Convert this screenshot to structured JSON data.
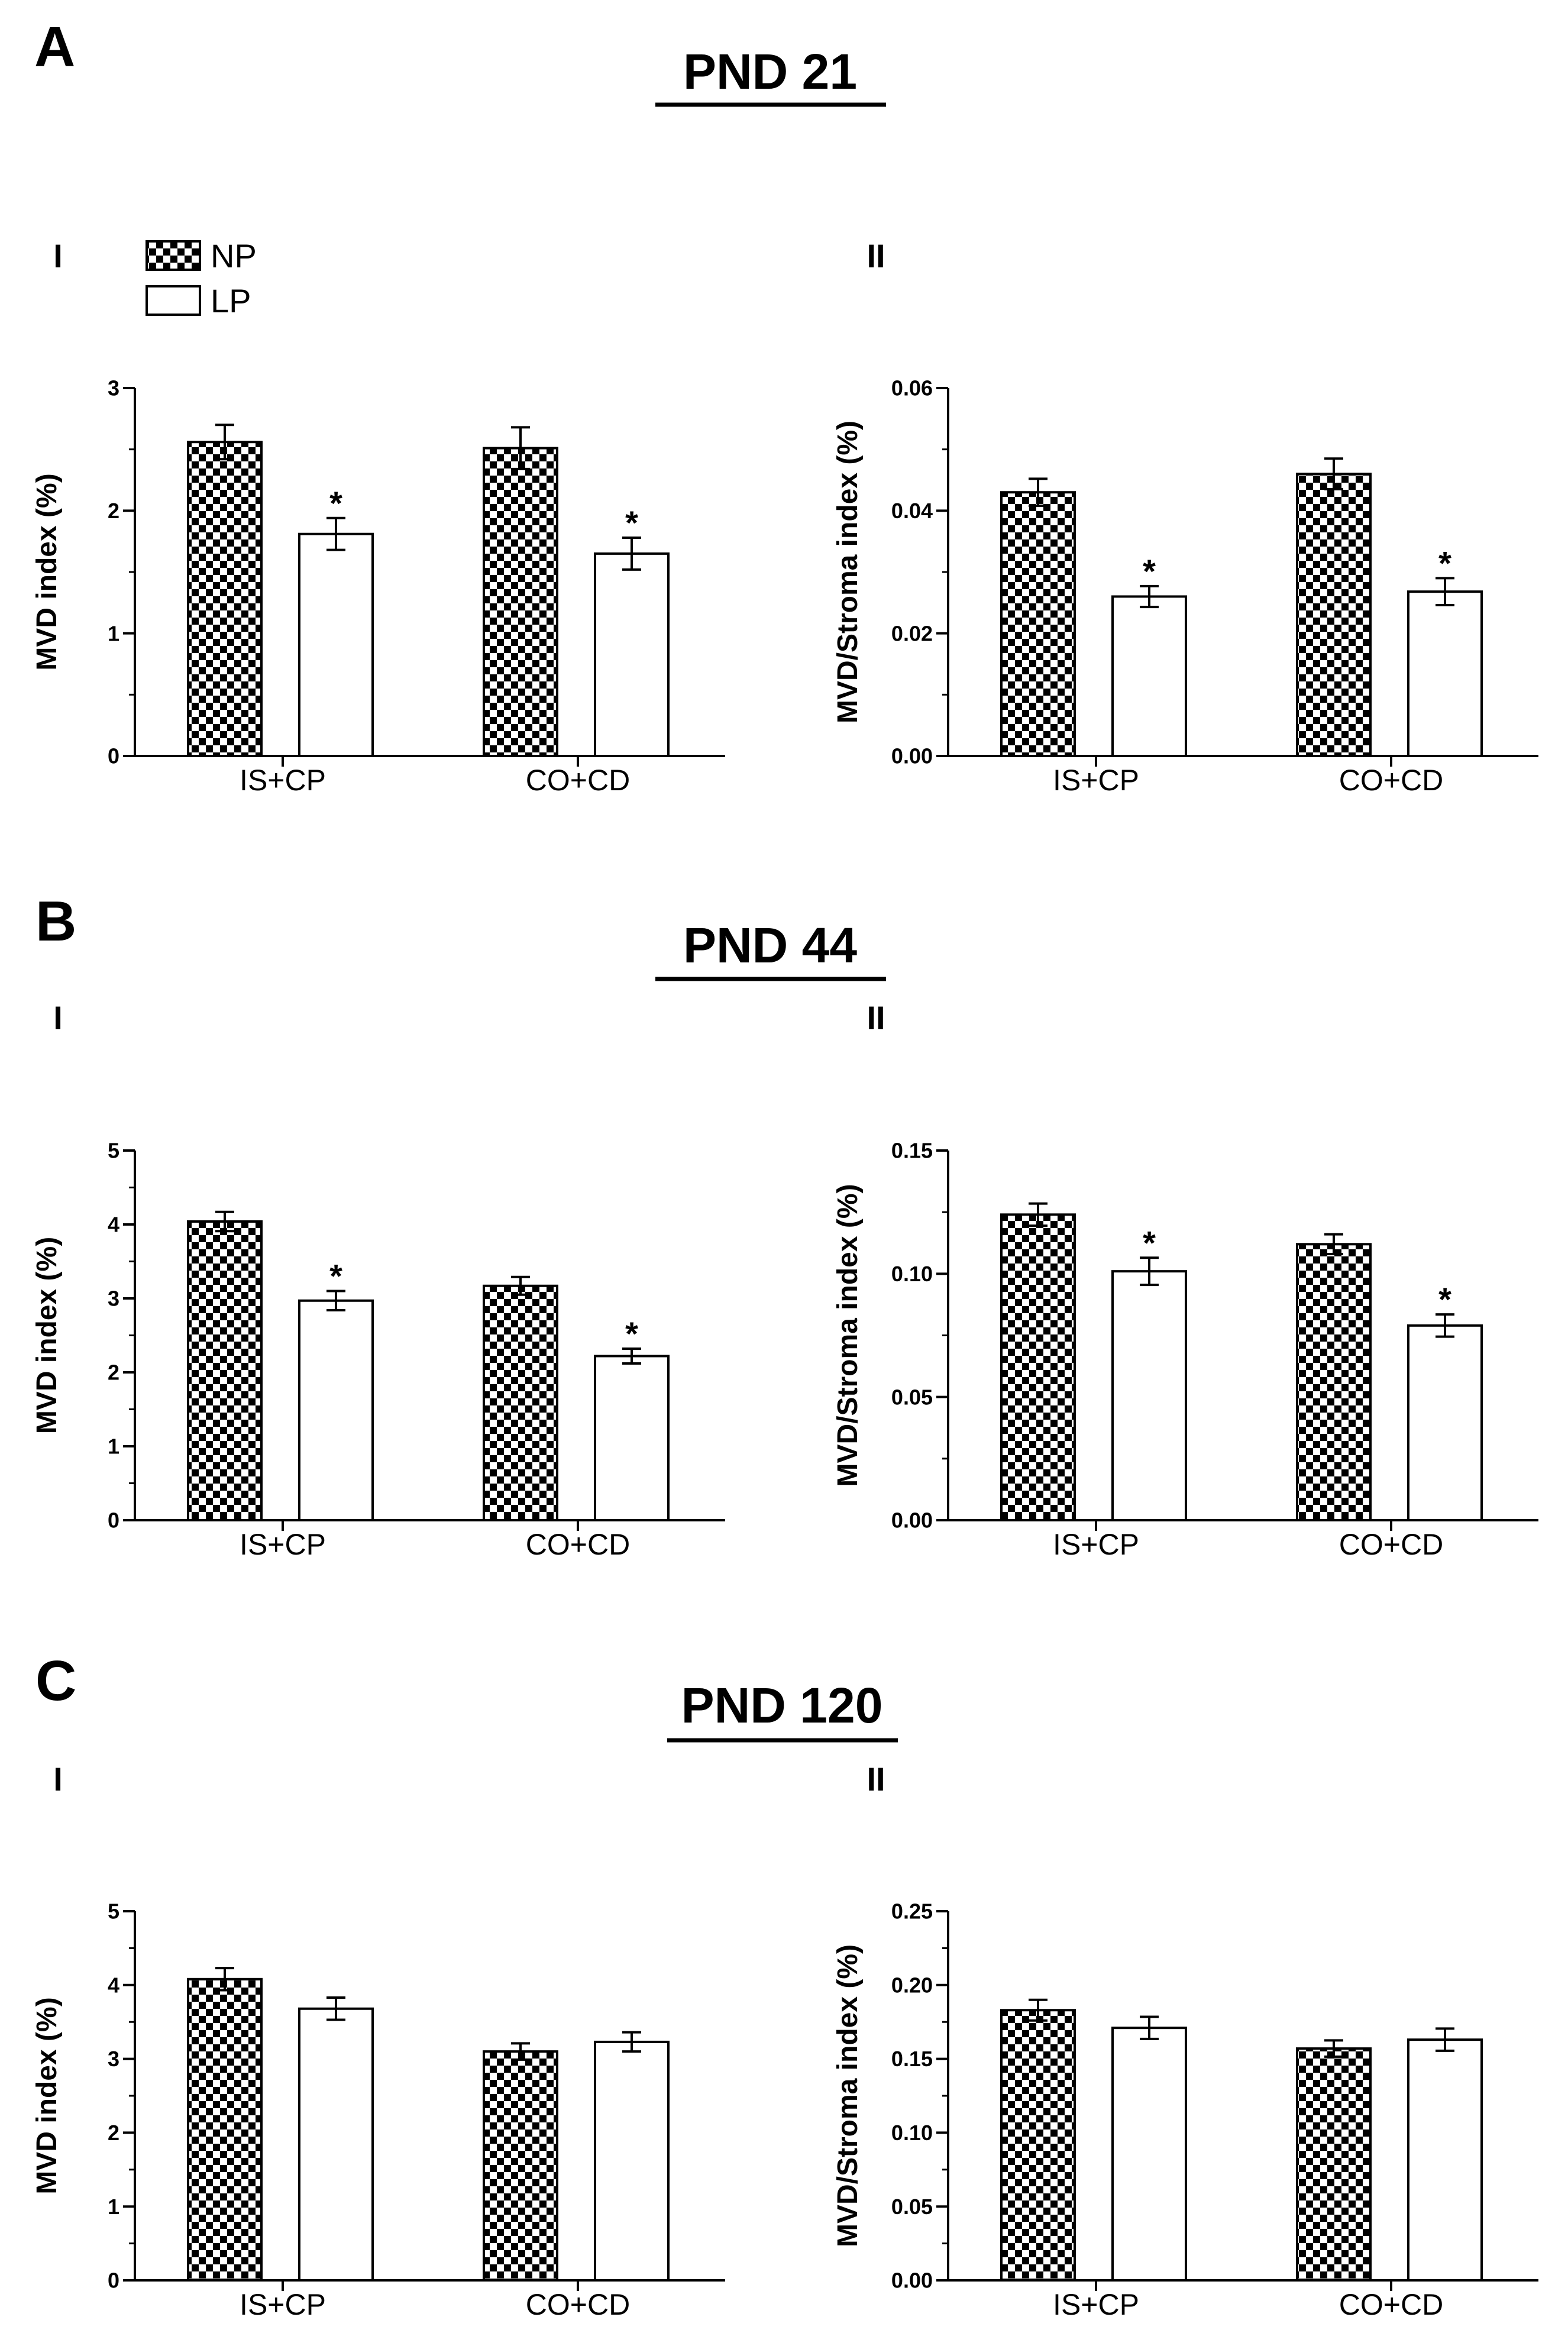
{
  "legend": {
    "np_label": "NP",
    "lp_label": "LP"
  },
  "sections": [
    {
      "letter": "A",
      "title": "PND 21"
    },
    {
      "letter": "B",
      "title": "PND 44"
    },
    {
      "letter": "C",
      "title": "PND 120"
    }
  ],
  "chart_data": [
    {
      "id": "A-I",
      "section": "A",
      "panel_label": "I",
      "type": "bar",
      "ylabel": "MVD index (%)",
      "ylim": [
        0,
        3
      ],
      "yticks": [
        0,
        1,
        2,
        3
      ],
      "ytick_labels": [
        "0",
        "1",
        "2",
        "3"
      ],
      "yminor_step": 0.5,
      "categories": [
        "IS+CP",
        "CO+CD"
      ],
      "series": [
        {
          "name": "NP",
          "values": [
            2.56,
            2.51
          ],
          "errors": [
            0.14,
            0.17
          ],
          "significant": [
            false,
            false
          ]
        },
        {
          "name": "LP",
          "values": [
            1.81,
            1.65
          ],
          "errors": [
            0.13,
            0.13
          ],
          "significant": [
            true,
            true
          ]
        }
      ],
      "significance_marker": "*"
    },
    {
      "id": "A-II",
      "section": "A",
      "panel_label": "II",
      "type": "bar",
      "ylabel": "MVD/Stroma index (%)",
      "ylim": [
        0,
        0.06
      ],
      "yticks": [
        0,
        0.02,
        0.04,
        0.06
      ],
      "ytick_labels": [
        "0.00",
        "0.02",
        "0.04",
        "0.06"
      ],
      "yminor_step": 0.01,
      "categories": [
        "IS+CP",
        "CO+CD"
      ],
      "series": [
        {
          "name": "NP",
          "values": [
            0.043,
            0.046
          ],
          "errors": [
            0.0022,
            0.0025
          ],
          "significant": [
            false,
            false
          ]
        },
        {
          "name": "LP",
          "values": [
            0.026,
            0.0268
          ],
          "errors": [
            0.0017,
            0.0022
          ],
          "significant": [
            true,
            true
          ]
        }
      ],
      "significance_marker": "*"
    },
    {
      "id": "B-I",
      "section": "B",
      "panel_label": "I",
      "type": "bar",
      "ylabel": "MVD index (%)",
      "ylim": [
        0,
        5
      ],
      "yticks": [
        0,
        1,
        2,
        3,
        4,
        5
      ],
      "ytick_labels": [
        "0",
        "1",
        "2",
        "3",
        "4",
        "5"
      ],
      "yminor_step": 0.5,
      "categories": [
        "IS+CP",
        "CO+CD"
      ],
      "series": [
        {
          "name": "NP",
          "values": [
            4.04,
            3.17
          ],
          "errors": [
            0.13,
            0.12
          ],
          "significant": [
            false,
            false
          ]
        },
        {
          "name": "LP",
          "values": [
            2.97,
            2.22
          ],
          "errors": [
            0.13,
            0.1
          ],
          "significant": [
            true,
            true
          ]
        }
      ],
      "significance_marker": "*"
    },
    {
      "id": "B-II",
      "section": "B",
      "panel_label": "II",
      "type": "bar",
      "ylabel": "MVD/Stroma index (%)",
      "ylim": [
        0,
        0.15
      ],
      "yticks": [
        0,
        0.05,
        0.1,
        0.15
      ],
      "ytick_labels": [
        "0.00",
        "0.05",
        "0.10",
        "0.15"
      ],
      "yminor_step": 0.025,
      "categories": [
        "IS+CP",
        "CO+CD"
      ],
      "series": [
        {
          "name": "NP",
          "values": [
            0.124,
            0.112
          ],
          "errors": [
            0.0045,
            0.004
          ],
          "significant": [
            false,
            false
          ]
        },
        {
          "name": "LP",
          "values": [
            0.101,
            0.079
          ],
          "errors": [
            0.0055,
            0.0045
          ],
          "significant": [
            true,
            true
          ]
        }
      ],
      "significance_marker": "*"
    },
    {
      "id": "C-I",
      "section": "C",
      "panel_label": "I",
      "type": "bar",
      "ylabel": "MVD index (%)",
      "ylim": [
        0,
        5
      ],
      "yticks": [
        0,
        1,
        2,
        3,
        4,
        5
      ],
      "ytick_labels": [
        "0",
        "1",
        "2",
        "3",
        "4",
        "5"
      ],
      "yminor_step": 0.5,
      "categories": [
        "IS+CP",
        "CO+CD"
      ],
      "series": [
        {
          "name": "NP",
          "values": [
            4.08,
            3.1
          ],
          "errors": [
            0.15,
            0.11
          ],
          "significant": [
            false,
            false
          ]
        },
        {
          "name": "LP",
          "values": [
            3.68,
            3.23
          ],
          "errors": [
            0.15,
            0.13
          ],
          "significant": [
            false,
            false
          ]
        }
      ],
      "significance_marker": "*"
    },
    {
      "id": "C-II",
      "section": "C",
      "panel_label": "II",
      "type": "bar",
      "ylabel": "MVD/Stroma index (%)",
      "ylim": [
        0,
        0.25
      ],
      "yticks": [
        0,
        0.05,
        0.1,
        0.15,
        0.2,
        0.25
      ],
      "ytick_labels": [
        "0.00",
        "0.05",
        "0.10",
        "0.15",
        "0.20",
        "0.25"
      ],
      "yminor_step": 0.025,
      "categories": [
        "IS+CP",
        "CO+CD"
      ],
      "series": [
        {
          "name": "NP",
          "values": [
            0.183,
            0.157
          ],
          "errors": [
            0.007,
            0.0055
          ],
          "significant": [
            false,
            false
          ]
        },
        {
          "name": "LP",
          "values": [
            0.171,
            0.163
          ],
          "errors": [
            0.0075,
            0.0075
          ],
          "significant": [
            false,
            false
          ]
        }
      ],
      "significance_marker": "*"
    }
  ]
}
